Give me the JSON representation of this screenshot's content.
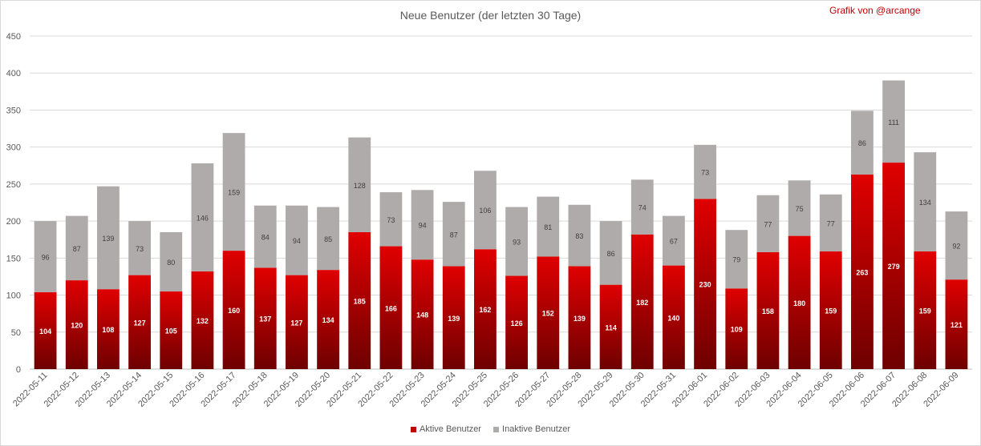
{
  "chart_data": {
    "type": "bar",
    "stacked": true,
    "title": "Neue Benutzer (der letzten 30 Tage)",
    "credit": "Grafik von @arcange",
    "xlabel": "",
    "ylabel": "",
    "ylim": [
      0,
      450
    ],
    "yticks": [
      0,
      50,
      100,
      150,
      200,
      250,
      300,
      350,
      400,
      450
    ],
    "grid": true,
    "legend_position": "bottom",
    "categories": [
      "2022-05-11",
      "2022-05-12",
      "2022-05-13",
      "2022-05-14",
      "2022-05-15",
      "2022-05-16",
      "2022-05-17",
      "2022-05-18",
      "2022-05-19",
      "2022-05-20",
      "2022-05-21",
      "2022-05-22",
      "2022-05-23",
      "2022-05-24",
      "2022-05-25",
      "2022-05-26",
      "2022-05-27",
      "2022-05-28",
      "2022-05-29",
      "2022-05-30",
      "2022-05-31",
      "2022-06-01",
      "2022-06-02",
      "2022-06-03",
      "2022-06-04",
      "2022-06-05",
      "2022-06-06",
      "2022-06-07",
      "2022-06-08",
      "2022-06-09"
    ],
    "series": [
      {
        "name": "Aktive Benutzer",
        "color": "#c00000",
        "values": [
          104,
          120,
          108,
          127,
          105,
          132,
          160,
          137,
          127,
          134,
          185,
          166,
          148,
          139,
          162,
          126,
          152,
          139,
          114,
          182,
          140,
          230,
          109,
          158,
          180,
          159,
          263,
          279,
          159,
          121
        ]
      },
      {
        "name": "Inaktive Benutzer",
        "color": "#afabab",
        "values": [
          96,
          87,
          139,
          73,
          80,
          146,
          159,
          84,
          94,
          85,
          128,
          73,
          94,
          87,
          106,
          93,
          81,
          83,
          86,
          74,
          67,
          73,
          79,
          77,
          75,
          77,
          86,
          111,
          134,
          92
        ]
      }
    ]
  }
}
